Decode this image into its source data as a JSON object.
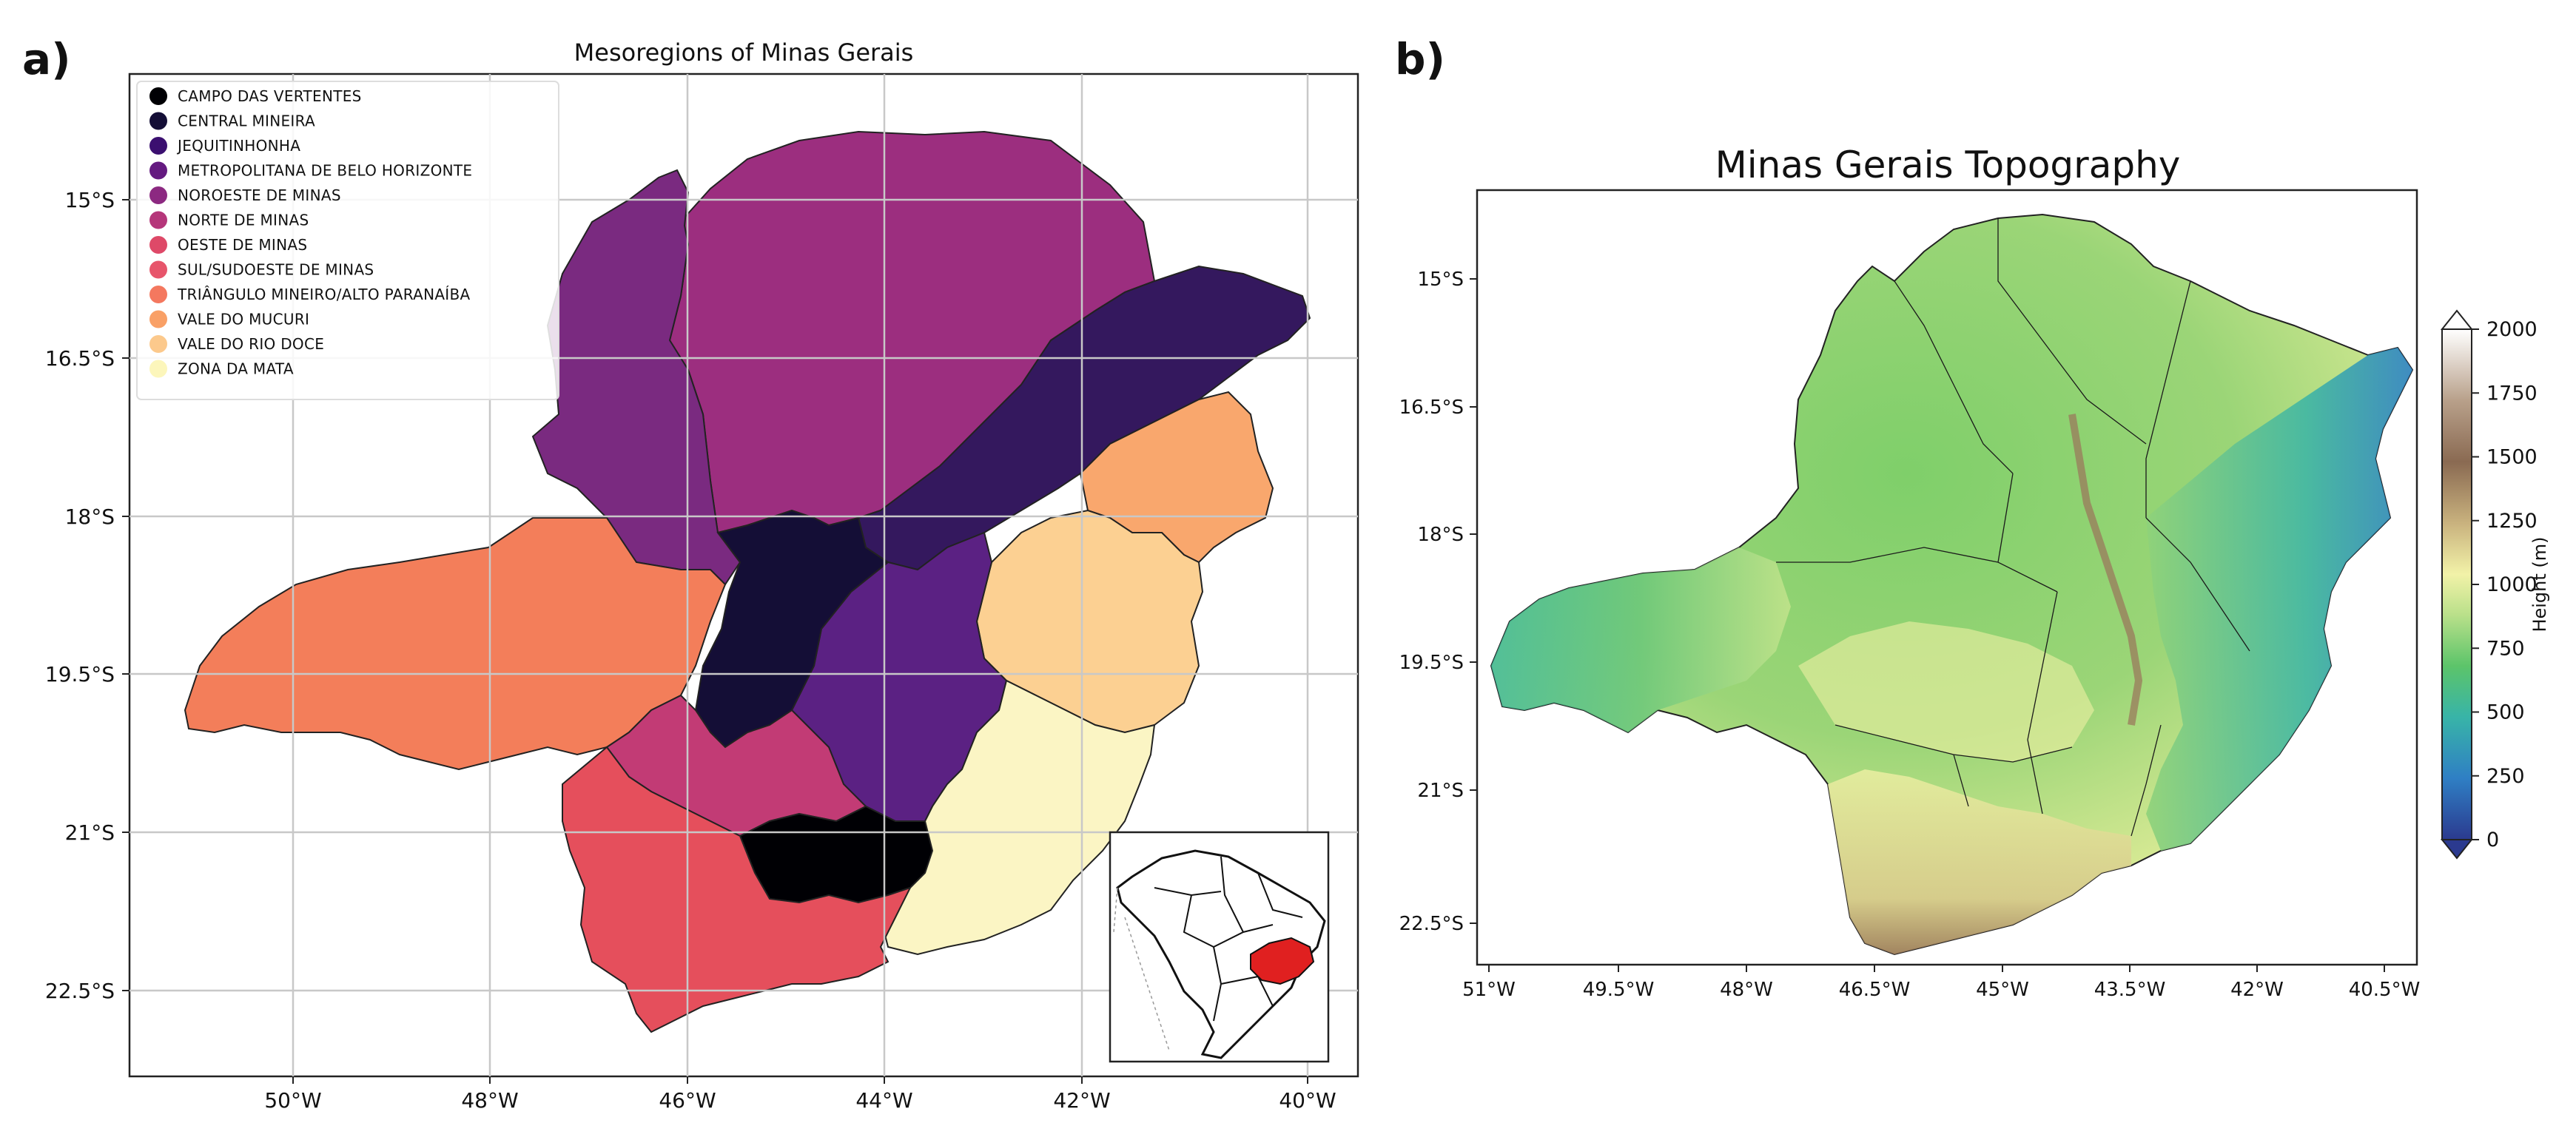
{
  "panel_a": {
    "letter": "a)",
    "title": "Mesoregions of Minas Gerais",
    "lat_ticks": [
      "15°S",
      "16.5°S",
      "18°S",
      "19.5°S",
      "21°S",
      "22.5°S"
    ],
    "lon_ticks": [
      "50°W",
      "48°W",
      "46°W",
      "44°W",
      "42°W",
      "40°W"
    ],
    "legend": [
      {
        "label": "CAMPO DAS VERTENTES",
        "color": "#000004"
      },
      {
        "label": "CENTRAL MINEIRA",
        "color": "#140e36"
      },
      {
        "label": "JEQUITINHONHA",
        "color": "#3b0f70"
      },
      {
        "label": "METROPOLITANA DE BELO HORIZONTE",
        "color": "#641a80"
      },
      {
        "label": "NOROESTE DE MINAS",
        "color": "#8c2981"
      },
      {
        "label": "NORTE DE MINAS",
        "color": "#b5367a"
      },
      {
        "label": "OESTE DE MINAS",
        "color": "#de4968"
      },
      {
        "label": "SUL/SUDOESTE DE MINAS",
        "color": "#e7556b"
      },
      {
        "label": "TRIÂNGULO MINEIRO/ALTO PARANAÍBA",
        "color": "#f4785f"
      },
      {
        "label": "VALE DO MUCURI",
        "color": "#f9a066"
      },
      {
        "label": "VALE DO RIO DOCE",
        "color": "#fcc98c"
      },
      {
        "label": "ZONA DA MATA",
        "color": "#fcf6bb"
      }
    ],
    "region_colors": {
      "campo_das_vertentes": "#000004",
      "central_mineira": "#140e36",
      "jequitinhonha": "#34185e",
      "metropolitana": "#5b2183",
      "noroeste": "#7a2a80",
      "norte": "#9c2e7f",
      "oeste": "#c23b75",
      "sul_sudoeste": "#e54f5c",
      "triangulo": "#f37e5a",
      "mucuri": "#f9a76d",
      "rio_doce": "#fcd092",
      "zona_da_mata": "#fbf5c4"
    },
    "inset_highlight_color": "#e02020"
  },
  "panel_b": {
    "letter": "b)",
    "title": "Minas Gerais Topography",
    "lat_ticks": [
      "15°S",
      "16.5°S",
      "18°S",
      "19.5°S",
      "21°S",
      "22.5°S"
    ],
    "lon_ticks": [
      "51°W",
      "49.5°W",
      "48°W",
      "46.5°W",
      "45°W",
      "43.5°W",
      "42°W",
      "40.5°W"
    ],
    "colorbar": {
      "label": "Height (m)",
      "ticks": [
        "0",
        "250",
        "500",
        "750",
        "1000",
        "1250",
        "1500",
        "1750",
        "2000"
      ],
      "range": [
        0,
        2000
      ],
      "extend": "both",
      "colors": [
        "#2b3a8f",
        "#2f7fc4",
        "#38b4a8",
        "#5cc46a",
        "#b9e08a",
        "#f2f2a8",
        "#c9b27e",
        "#8a6a52",
        "#b8a08a",
        "#ffffff"
      ]
    }
  }
}
